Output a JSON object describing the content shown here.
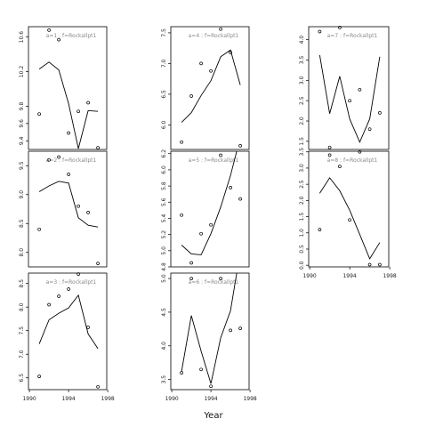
{
  "chart_data": {
    "type": "line",
    "xlabel": "Year",
    "panels": [
      {
        "title": "a=1  :  f=Rockallpt1",
        "ylim": [
          9.3,
          10.72
        ],
        "yticks": [
          "9.4",
          "9.6",
          "9.8",
          "10.2",
          "10.6"
        ],
        "points_x": [
          1991,
          1992,
          1993,
          1994,
          1995,
          1996,
          1997
        ],
        "points_y": [
          9.71,
          10.68,
          10.57,
          9.49,
          9.74,
          9.84,
          9.32
        ],
        "line_x": [
          1991,
          1992,
          1993,
          1994,
          1995,
          1996,
          1997
        ],
        "line_y": [
          10.23,
          10.31,
          10.22,
          9.83,
          9.31,
          9.75,
          9.74
        ]
      },
      {
        "title": "a=2  :  f=Rockallpt1",
        "ylim": [
          7.75,
          9.75
        ],
        "yticks": [
          "8.0",
          "8.5",
          "9.0",
          "9.5"
        ],
        "points_x": [
          1991,
          1992,
          1993,
          1994,
          1995,
          1996,
          1997
        ],
        "points_y": [
          8.4,
          9.6,
          9.65,
          9.35,
          8.8,
          8.69,
          7.81
        ],
        "line_x": [
          1991,
          1992,
          1993,
          1994,
          1995,
          1996,
          1997
        ],
        "line_y": [
          9.05,
          9.15,
          9.23,
          9.2,
          8.6,
          8.47,
          8.44
        ]
      },
      {
        "title": "a=3  :  f=Rockallpt1",
        "ylim": [
          6.25,
          8.72
        ],
        "yticks": [
          "6.5",
          "7.0",
          "7.5",
          "8.0",
          "8.5"
        ],
        "points_x": [
          1991,
          1992,
          1993,
          1994,
          1995,
          1996,
          1997
        ],
        "points_y": [
          6.53,
          8.05,
          8.23,
          8.38,
          8.7,
          7.57,
          6.31
        ],
        "line_x": [
          1991,
          1992,
          1993,
          1994,
          1995,
          1996,
          1997
        ],
        "line_y": [
          7.22,
          7.73,
          7.87,
          7.98,
          8.25,
          7.43,
          7.12
        ]
      },
      {
        "title": "a=4  :  f=Rockallpt1",
        "ylim": [
          5.6,
          7.6
        ],
        "yticks": [
          "6.0",
          "6.5",
          "7.0",
          "7.5"
        ],
        "points_x": [
          1991,
          1992,
          1993,
          1994,
          1995,
          1996,
          1997
        ],
        "points_y": [
          5.72,
          6.47,
          7.0,
          6.88,
          7.56,
          7.18,
          5.66
        ],
        "line_x": [
          1991,
          1992,
          1993,
          1994,
          1995,
          1996,
          1997
        ],
        "line_y": [
          6.04,
          6.2,
          6.48,
          6.72,
          7.11,
          7.22,
          6.65
        ]
      },
      {
        "title": "a=5  :  f=Rockallpt1",
        "ylim": [
          4.8,
          6.23
        ],
        "yticks": [
          "4.8",
          "5.0",
          "5.2",
          "5.4",
          "5.6",
          "5.8",
          "6.0",
          "6.2"
        ],
        "points_x": [
          1991,
          1992,
          1993,
          1994,
          1995,
          1996,
          1997
        ],
        "points_y": [
          5.44,
          4.85,
          5.21,
          5.32,
          6.18,
          5.78,
          5.64
        ],
        "line_x": [
          1991,
          1992,
          1993,
          1994,
          1995,
          1996,
          1997
        ],
        "line_y": [
          5.07,
          4.96,
          4.95,
          5.21,
          5.54,
          5.93,
          6.4
        ]
      },
      {
        "title": "a=6  :  f=Rockallpt1",
        "ylim": [
          3.35,
          5.08
        ],
        "yticks": [
          "3.5",
          "4.0",
          "4.5",
          "5.0"
        ],
        "points_x": [
          1991,
          1992,
          1993,
          1994,
          1995,
          1996,
          1997
        ],
        "points_y": [
          3.6,
          5.0,
          3.65,
          3.4,
          5.0,
          4.23,
          4.26
        ],
        "line_x": [
          1991,
          1992,
          1993,
          1994,
          1995,
          1996,
          1997
        ],
        "line_y": [
          3.62,
          4.45,
          3.92,
          3.44,
          4.12,
          4.52,
          5.4
        ]
      },
      {
        "title": "a=7  :  f=Rockallpt1",
        "ylim": [
          1.3,
          4.32
        ],
        "yticks": [
          "1.5",
          "2.0",
          "2.5",
          "3.0",
          "3.5",
          "4.0"
        ],
        "points_x": [
          1991,
          1992,
          1993,
          1994,
          1995,
          1996,
          1997
        ],
        "points_y": [
          4.2,
          1.35,
          4.3,
          2.5,
          2.77,
          1.8,
          2.2
        ],
        "line_x": [
          1991,
          1992,
          1993,
          1994,
          1995,
          1996,
          1997
        ],
        "line_y": [
          3.62,
          2.18,
          3.1,
          2.05,
          1.48,
          2.05,
          3.58
        ]
      },
      {
        "title": "a=8  :  f=Rockallpt1",
        "ylim": [
          -0.05,
          3.52
        ],
        "yticks": [
          "0.0",
          "0.5",
          "1.0",
          "1.5",
          "2.0",
          "2.5",
          "3.0",
          "3.5"
        ],
        "points_x": [
          1991,
          1992,
          1993,
          1994,
          1995,
          1996,
          1997
        ],
        "points_y": [
          1.1,
          3.4,
          3.05,
          1.4,
          3.5,
          0.02,
          0.02
        ],
        "line_x": [
          1991,
          1992,
          1993,
          1994,
          1995,
          1996,
          1997
        ],
        "line_y": [
          2.22,
          2.7,
          2.3,
          1.7,
          0.95,
          0.2,
          0.7
        ]
      }
    ],
    "xlim": [
      1989.9,
      1997.9
    ],
    "xticks": [
      1990,
      1994,
      1998
    ]
  }
}
